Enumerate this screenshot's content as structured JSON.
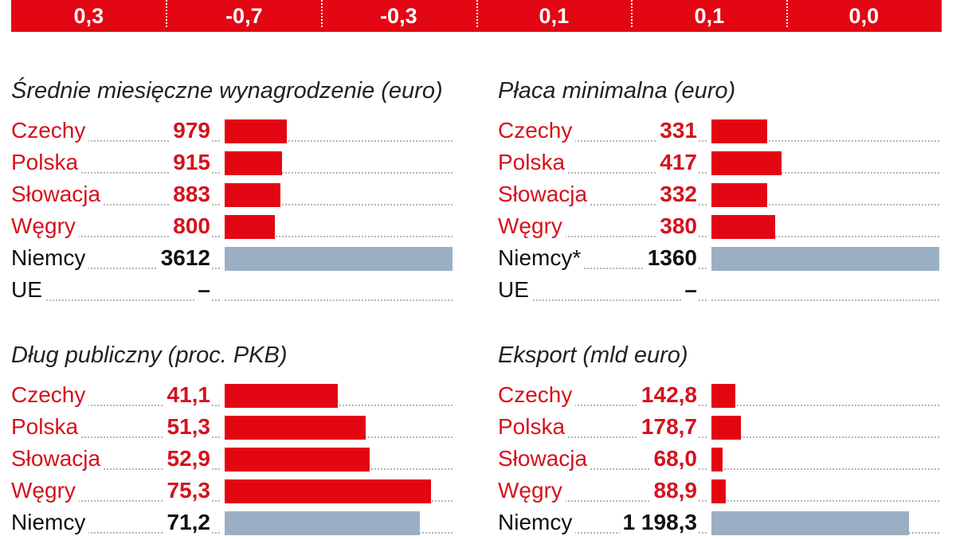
{
  "colors": {
    "accent_red": "#e30613",
    "bar_red": "#e30613",
    "bar_gray": "#9bafc4"
  },
  "top_band": [
    "0,3",
    "-0,7",
    "-0,3",
    "0,1",
    "0,1",
    "0,0"
  ],
  "panels": [
    {
      "title": "Średnie miesięczne wynagrodzenie (euro)",
      "rows": [
        {
          "label": "Czechy",
          "value": "979",
          "highlight": true
        },
        {
          "label": "Polska",
          "value": "915",
          "highlight": true
        },
        {
          "label": "Słowacja",
          "value": "883",
          "highlight": true
        },
        {
          "label": "Węgry",
          "value": "800",
          "highlight": true
        },
        {
          "label": "Niemcy",
          "value": "3612",
          "highlight": false
        },
        {
          "label": "UE",
          "value": "–",
          "highlight": false
        }
      ]
    },
    {
      "title": "Płaca minimalna (euro)",
      "rows": [
        {
          "label": "Czechy",
          "value": "331",
          "highlight": true
        },
        {
          "label": "Polska",
          "value": "417",
          "highlight": true
        },
        {
          "label": "Słowacja",
          "value": "332",
          "highlight": true
        },
        {
          "label": "Węgry",
          "value": "380",
          "highlight": true
        },
        {
          "label": "Niemcy*",
          "value": "1360",
          "highlight": false
        },
        {
          "label": "UE",
          "value": "–",
          "highlight": false
        }
      ]
    },
    {
      "title": "Dług publiczny (proc. PKB)",
      "rows": [
        {
          "label": "Czechy",
          "value": "41,1",
          "highlight": true
        },
        {
          "label": "Polska",
          "value": "51,3",
          "highlight": true
        },
        {
          "label": "Słowacja",
          "value": "52,9",
          "highlight": true
        },
        {
          "label": "Węgry",
          "value": "75,3",
          "highlight": true
        },
        {
          "label": "Niemcy",
          "value": "71,2",
          "highlight": false
        }
      ]
    },
    {
      "title": "Eksport (mld euro)",
      "rows": [
        {
          "label": "Czechy",
          "value": "142,8",
          "highlight": true
        },
        {
          "label": "Polska",
          "value": "178,7",
          "highlight": true
        },
        {
          "label": "Słowacja",
          "value": "68,0",
          "highlight": true
        },
        {
          "label": "Węgry",
          "value": "88,9",
          "highlight": true
        },
        {
          "label": "Niemcy",
          "value": "1 198,3",
          "highlight": false
        }
      ]
    }
  ],
  "chart_data": [
    {
      "type": "bar",
      "title": "Średnie miesięczne wynagrodzenie (euro)",
      "categories": [
        "Czechy",
        "Polska",
        "Słowacja",
        "Węgry",
        "Niemcy",
        "UE"
      ],
      "values": [
        979,
        915,
        883,
        800,
        3612,
        null
      ],
      "xlim": [
        0,
        3612
      ]
    },
    {
      "type": "bar",
      "title": "Płaca minimalna (euro)",
      "categories": [
        "Czechy",
        "Polska",
        "Słowacja",
        "Węgry",
        "Niemcy*",
        "UE"
      ],
      "values": [
        331,
        417,
        332,
        380,
        1360,
        null
      ],
      "xlim": [
        0,
        1360
      ]
    },
    {
      "type": "bar",
      "title": "Dług publiczny (proc. PKB)",
      "categories": [
        "Czechy",
        "Polska",
        "Słowacja",
        "Węgry",
        "Niemcy"
      ],
      "values": [
        41.1,
        51.3,
        52.9,
        75.3,
        71.2
      ],
      "xlim": [
        0,
        83
      ]
    },
    {
      "type": "bar",
      "title": "Eksport (mld euro)",
      "categories": [
        "Czechy",
        "Polska",
        "Słowacja",
        "Węgry",
        "Niemcy"
      ],
      "values": [
        142.8,
        178.7,
        68.0,
        88.9,
        1198.3
      ],
      "xlim": [
        0,
        1380
      ]
    }
  ]
}
